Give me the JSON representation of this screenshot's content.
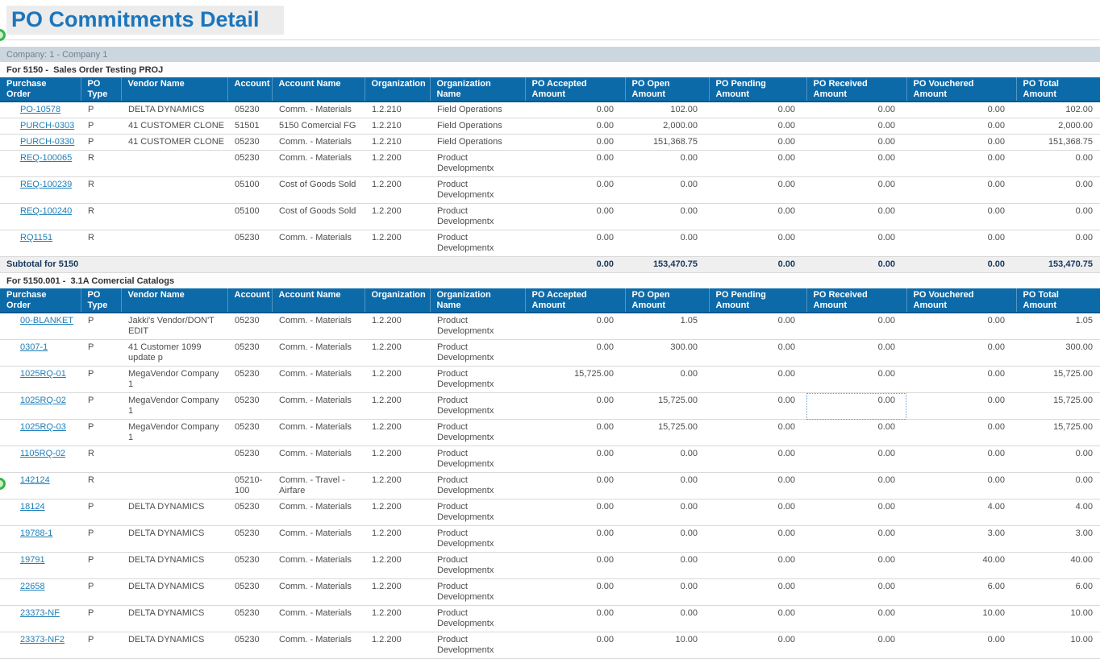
{
  "page": {
    "title": "PO Commitments Detail"
  },
  "company_bar": {
    "label": "Company: 1 - Company 1"
  },
  "colors": {
    "table_header_bg": "#0c6aa9",
    "table_header_divider": "#4f96c5",
    "link": "#1e7fb8",
    "title": "#1b76bd",
    "company_bar_bg": "#ccd6df",
    "subtotal_text": "#17375e",
    "indicator_dot_green": "#35b44a"
  },
  "table": {
    "columns": [
      {
        "key": "po",
        "label": "Purchase\nOrder",
        "align": "left",
        "width": 100
      },
      {
        "key": "type",
        "label": "PO\nType",
        "align": "left",
        "width": 50
      },
      {
        "key": "vendor",
        "label": "Vendor Name",
        "align": "left",
        "width": 132
      },
      {
        "key": "account",
        "label": "Account",
        "align": "left",
        "width": 55
      },
      {
        "key": "account_name",
        "label": "Account Name",
        "align": "left",
        "width": 115
      },
      {
        "key": "org",
        "label": "Organization",
        "align": "left",
        "width": 81
      },
      {
        "key": "org_name",
        "label": "Organization\nName",
        "align": "left",
        "width": 118
      },
      {
        "key": "accepted",
        "label": "PO Accepted\nAmount",
        "align": "right",
        "width": 124
      },
      {
        "key": "open",
        "label": "PO Open\nAmount",
        "align": "right",
        "width": 104
      },
      {
        "key": "pending",
        "label": "PO Pending\nAmount",
        "align": "right",
        "width": 121
      },
      {
        "key": "received",
        "label": "PO Received\nAmount",
        "align": "right",
        "width": 124
      },
      {
        "key": "vouchered",
        "label": "PO Vouchered\nAmount",
        "align": "right",
        "width": 136
      },
      {
        "key": "total",
        "label": "PO Total\nAmount",
        "align": "right",
        "width": 104
      }
    ],
    "amount_keys": [
      "accepted",
      "open",
      "pending",
      "received",
      "vouchered",
      "total"
    ]
  },
  "sections": [
    {
      "heading": "For 5150 -  Sales Order Testing PROJ",
      "rows": [
        {
          "po": "PO-10578",
          "type": "P",
          "vendor": "DELTA DYNAMICS",
          "account": "05230",
          "account_name": "Comm. - Materials",
          "org": "1.2.210",
          "org_name": "Field Operations",
          "accepted": "0.00",
          "open": "102.00",
          "pending": "0.00",
          "received": "0.00",
          "vouchered": "0.00",
          "total": "102.00"
        },
        {
          "po": "PURCH-0303",
          "type": "P",
          "vendor": "41 CUSTOMER CLONE",
          "account": "51501",
          "account_name": "5150 Comercial FG",
          "org": "1.2.210",
          "org_name": "Field Operations",
          "accepted": "0.00",
          "open": "2,000.00",
          "pending": "0.00",
          "received": "0.00",
          "vouchered": "0.00",
          "total": "2,000.00"
        },
        {
          "po": "PURCH-0330",
          "type": "P",
          "vendor": "41 CUSTOMER CLONE",
          "account": "05230",
          "account_name": "Comm. - Materials",
          "org": "1.2.210",
          "org_name": "Field Operations",
          "accepted": "0.00",
          "open": "151,368.75",
          "pending": "0.00",
          "received": "0.00",
          "vouchered": "0.00",
          "total": "151,368.75"
        },
        {
          "po": "REQ-100065",
          "type": "R",
          "vendor": "",
          "account": "05230",
          "account_name": "Comm. - Materials",
          "org": "1.2.200",
          "org_name": "Product Developmentx",
          "accepted": "0.00",
          "open": "0.00",
          "pending": "0.00",
          "received": "0.00",
          "vouchered": "0.00",
          "total": "0.00"
        },
        {
          "po": "REQ-100239",
          "type": "R",
          "vendor": "",
          "account": "05100",
          "account_name": "Cost of Goods Sold",
          "org": "1.2.200",
          "org_name": "Product Developmentx",
          "accepted": "0.00",
          "open": "0.00",
          "pending": "0.00",
          "received": "0.00",
          "vouchered": "0.00",
          "total": "0.00"
        },
        {
          "po": "REQ-100240",
          "type": "R",
          "vendor": "",
          "account": "05100",
          "account_name": "Cost of Goods Sold",
          "org": "1.2.200",
          "org_name": "Product Developmentx",
          "accepted": "0.00",
          "open": "0.00",
          "pending": "0.00",
          "received": "0.00",
          "vouchered": "0.00",
          "total": "0.00"
        },
        {
          "po": "RQ1151",
          "type": "R",
          "vendor": "",
          "account": "05230",
          "account_name": "Comm. - Materials",
          "org": "1.2.200",
          "org_name": "Product Developmentx",
          "accepted": "0.00",
          "open": "0.00",
          "pending": "0.00",
          "received": "0.00",
          "vouchered": "0.00",
          "total": "0.00"
        }
      ],
      "subtotal": {
        "label": "Subtotal for 5150",
        "accepted": "0.00",
        "open": "153,470.75",
        "pending": "0.00",
        "received": "0.00",
        "vouchered": "0.00",
        "total": "153,470.75"
      }
    },
    {
      "heading": "For 5150.001 -  3.1A Comercial Catalogs",
      "rows": [
        {
          "po": "00-BLANKET",
          "type": "P",
          "vendor": "Jakki's Vendor/DON'T EDIT",
          "account": "05230",
          "account_name": "Comm. - Materials",
          "org": "1.2.200",
          "org_name": "Product Developmentx",
          "accepted": "0.00",
          "open": "1.05",
          "pending": "0.00",
          "received": "0.00",
          "vouchered": "0.00",
          "total": "1.05"
        },
        {
          "po": "0307-1",
          "type": "P",
          "vendor": "41 Customer 1099 update p",
          "account": "05230",
          "account_name": "Comm. - Materials",
          "org": "1.2.200",
          "org_name": "Product Developmentx",
          "accepted": "0.00",
          "open": "300.00",
          "pending": "0.00",
          "received": "0.00",
          "vouchered": "0.00",
          "total": "300.00"
        },
        {
          "po": "1025RQ-01",
          "type": "P",
          "vendor": "MegaVendor Company 1",
          "account": "05230",
          "account_name": "Comm. - Materials",
          "org": "1.2.200",
          "org_name": "Product Developmentx",
          "accepted": "15,725.00",
          "open": "0.00",
          "pending": "0.00",
          "received": "0.00",
          "vouchered": "0.00",
          "total": "15,725.00"
        },
        {
          "po": "1025RQ-02",
          "type": "P",
          "vendor": "MegaVendor Company 1",
          "account": "05230",
          "account_name": "Comm. - Materials",
          "org": "1.2.200",
          "org_name": "Product Developmentx",
          "accepted": "0.00",
          "open": "15,725.00",
          "pending": "0.00",
          "received": "0.00",
          "vouchered": "0.00",
          "total": "15,725.00",
          "focus": "received"
        },
        {
          "po": "1025RQ-03",
          "type": "P",
          "vendor": "MegaVendor Company 1",
          "account": "05230",
          "account_name": "Comm. - Materials",
          "org": "1.2.200",
          "org_name": "Product Developmentx",
          "accepted": "0.00",
          "open": "15,725.00",
          "pending": "0.00",
          "received": "0.00",
          "vouchered": "0.00",
          "total": "15,725.00"
        },
        {
          "po": "1105RQ-02",
          "type": "R",
          "vendor": "",
          "account": "05230",
          "account_name": "Comm. - Materials",
          "org": "1.2.200",
          "org_name": "Product Developmentx",
          "accepted": "0.00",
          "open": "0.00",
          "pending": "0.00",
          "received": "0.00",
          "vouchered": "0.00",
          "total": "0.00"
        },
        {
          "po": "142124",
          "type": "R",
          "vendor": "",
          "account": "05210-100",
          "account_name": "Comm. - Travel - Airfare",
          "org": "1.2.200",
          "org_name": "Product Developmentx",
          "accepted": "0.00",
          "open": "0.00",
          "pending": "0.00",
          "received": "0.00",
          "vouchered": "0.00",
          "total": "0.00"
        },
        {
          "po": "18124",
          "type": "P",
          "vendor": "DELTA DYNAMICS",
          "account": "05230",
          "account_name": "Comm. - Materials",
          "org": "1.2.200",
          "org_name": "Product Developmentx",
          "accepted": "0.00",
          "open": "0.00",
          "pending": "0.00",
          "received": "0.00",
          "vouchered": "4.00",
          "total": "4.00"
        },
        {
          "po": "19788-1",
          "type": "P",
          "vendor": "DELTA DYNAMICS",
          "account": "05230",
          "account_name": "Comm. - Materials",
          "org": "1.2.200",
          "org_name": "Product Developmentx",
          "accepted": "0.00",
          "open": "0.00",
          "pending": "0.00",
          "received": "0.00",
          "vouchered": "3.00",
          "total": "3.00"
        },
        {
          "po": "19791",
          "type": "P",
          "vendor": "DELTA DYNAMICS",
          "account": "05230",
          "account_name": "Comm. - Materials",
          "org": "1.2.200",
          "org_name": "Product Developmentx",
          "accepted": "0.00",
          "open": "0.00",
          "pending": "0.00",
          "received": "0.00",
          "vouchered": "40.00",
          "total": "40.00"
        },
        {
          "po": "22658",
          "type": "P",
          "vendor": "DELTA DYNAMICS",
          "account": "05230",
          "account_name": "Comm. - Materials",
          "org": "1.2.200",
          "org_name": "Product Developmentx",
          "accepted": "0.00",
          "open": "0.00",
          "pending": "0.00",
          "received": "0.00",
          "vouchered": "6.00",
          "total": "6.00"
        },
        {
          "po": "23373-NF",
          "type": "P",
          "vendor": "DELTA DYNAMICS",
          "account": "05230",
          "account_name": "Comm. - Materials",
          "org": "1.2.200",
          "org_name": "Product Developmentx",
          "accepted": "0.00",
          "open": "0.00",
          "pending": "0.00",
          "received": "0.00",
          "vouchered": "10.00",
          "total": "10.00"
        },
        {
          "po": "23373-NF2",
          "type": "P",
          "vendor": "DELTA DYNAMICS",
          "account": "05230",
          "account_name": "Comm. - Materials",
          "org": "1.2.200",
          "org_name": "Product Developmentx",
          "accepted": "0.00",
          "open": "10.00",
          "pending": "0.00",
          "received": "0.00",
          "vouchered": "0.00",
          "total": "10.00"
        }
      ],
      "subtotal": null
    }
  ]
}
